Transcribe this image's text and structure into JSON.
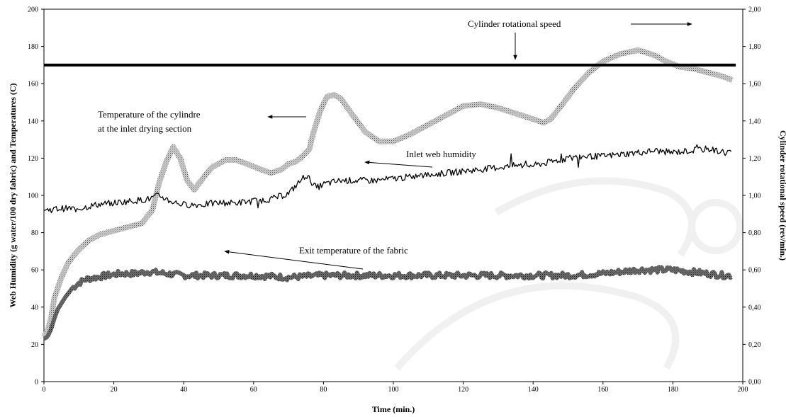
{
  "chart_data": {
    "type": "line",
    "xlabel": "Time (min.)",
    "ylabel_left": "Web Humidity (g water/100 dry fabric) and Temperatures (C)",
    "ylabel_right": "Cylinder rotational speed (rev/min.)",
    "xlim": [
      0,
      200
    ],
    "ylim_left": [
      0,
      200
    ],
    "ylim_right": [
      0,
      2
    ],
    "x_ticks": [
      "0",
      "20",
      "40",
      "60",
      "80",
      "100",
      "120",
      "140",
      "160",
      "180",
      "200"
    ],
    "y_left_ticks": [
      "0",
      "20",
      "40",
      "60",
      "80",
      "100",
      "120",
      "140",
      "160",
      "180",
      "200"
    ],
    "y_right_ticks": [
      "0,00",
      "0,20",
      "0,40",
      "0,60",
      "0,80",
      "1,00",
      "1,20",
      "1,40",
      "1,60",
      "1,80",
      "2,00"
    ],
    "grid": false,
    "legend": "none",
    "series": [
      {
        "axis": "right",
        "style": "solid-thick",
        "x": [
          0,
          198
        ],
        "y": [
          1.7,
          1.7
        ]
      },
      {
        "axis": "left",
        "style": "hatched-band",
        "x": [
          0,
          1,
          2,
          3,
          5,
          7,
          10,
          13,
          16,
          20,
          24,
          28,
          31,
          33,
          35,
          37,
          39,
          41,
          43,
          45,
          48,
          52,
          55,
          58,
          62,
          65,
          68,
          70,
          72,
          74,
          76,
          77,
          79,
          81,
          83,
          85,
          88,
          92,
          96,
          100,
          105,
          110,
          115,
          120,
          125,
          130,
          135,
          140,
          143,
          145,
          148,
          152,
          156,
          160,
          165,
          170,
          172,
          175,
          178,
          182,
          186,
          190,
          194,
          197
        ],
        "y": [
          24,
          27,
          34,
          45,
          56,
          64,
          71,
          76,
          79,
          81,
          83,
          85,
          92,
          107,
          118,
          126,
          120,
          108,
          103,
          108,
          115,
          119,
          119,
          117,
          114,
          112,
          114,
          117,
          118,
          121,
          125,
          133,
          145,
          153,
          154,
          152,
          144,
          134,
          129,
          129,
          133,
          138,
          143,
          148,
          149,
          147,
          144,
          141,
          139,
          141,
          148,
          158,
          166,
          172,
          176,
          178,
          177,
          175,
          172,
          169,
          168,
          166,
          164,
          162
        ]
      },
      {
        "axis": "left",
        "style": "solid-thin-noisy",
        "x": [
          0,
          5,
          10,
          15,
          20,
          25,
          30,
          33,
          36,
          40,
          45,
          50,
          55,
          60,
          65,
          70,
          75,
          78,
          80,
          85,
          90,
          95,
          100,
          105,
          110,
          115,
          120,
          125,
          130,
          135,
          140,
          145,
          150,
          155,
          160,
          165,
          170,
          175,
          180,
          185,
          190,
          195,
          197
        ],
        "y": [
          92,
          93,
          93,
          95,
          96,
          97,
          98,
          100,
          97,
          95,
          95,
          96,
          96,
          97,
          98,
          101,
          111,
          104,
          106,
          108,
          108,
          108,
          109,
          110,
          111,
          112,
          113,
          114,
          115,
          116,
          116,
          118,
          120,
          121,
          121,
          122,
          123,
          124,
          123,
          124,
          125,
          123,
          124
        ]
      },
      {
        "axis": "left",
        "style": "dark-band",
        "x": [
          0,
          1,
          2,
          3,
          4,
          6,
          8,
          10,
          12,
          15,
          18,
          22,
          26,
          30,
          35,
          40,
          50,
          60,
          70,
          80,
          90,
          100,
          110,
          120,
          130,
          140,
          150,
          160,
          165,
          170,
          175,
          180,
          185,
          190,
          195,
          197
        ],
        "y": [
          23,
          24,
          28,
          34,
          39,
          45,
          50,
          53,
          55,
          56,
          57,
          58,
          58,
          59,
          58,
          57,
          57,
          57,
          56,
          57,
          57,
          57,
          57,
          57,
          57,
          57,
          57,
          58,
          59,
          60,
          60,
          60,
          59,
          58,
          57,
          57
        ]
      }
    ],
    "annotations": [
      "Cylinder rotational speed",
      "Temperature of the cylindre",
      "at the inlet drying section",
      "Inlet web humidity",
      "Exit temperature of the fabric"
    ]
  }
}
